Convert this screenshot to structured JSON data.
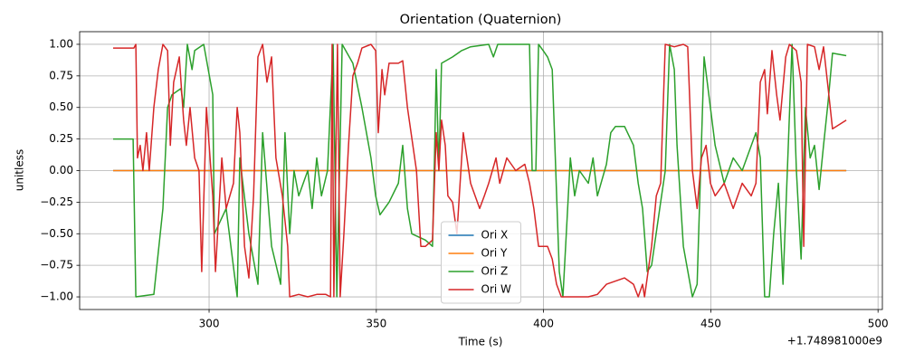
{
  "chart_data": {
    "type": "line",
    "title": "Orientation (Quaternion)",
    "x_label": "Time (s)",
    "y_label": "unitless",
    "x_offset_label": "+1.748981000e9",
    "xlim": [
      261.3,
      501.3
    ],
    "ylim": [
      -1.1,
      1.1
    ],
    "xticks": [
      300,
      350,
      400,
      450,
      500
    ],
    "yticks": [
      {
        "value": -1,
        "label": "−1.00"
      },
      {
        "value": -0.75,
        "label": "−0.75"
      },
      {
        "value": -0.5,
        "label": "−0.50"
      },
      {
        "value": -0.25,
        "label": "−0.25"
      },
      {
        "value": 0,
        "label": "0.00"
      },
      {
        "value": 0.25,
        "label": "0.25"
      },
      {
        "value": 0.5,
        "label": "0.50"
      },
      {
        "value": 0.75,
        "label": "0.75"
      },
      {
        "value": 1,
        "label": "1.00"
      }
    ],
    "grid": true,
    "legend_position": "lower center",
    "series": [
      {
        "name": "Ori X",
        "color": "#1f77b4",
        "x": [
          271.3,
          490.5
        ],
        "values": [
          0,
          0
        ]
      },
      {
        "name": "Ori Y",
        "color": "#ff7f0e",
        "x": [
          271.3,
          490.5
        ],
        "values": [
          0,
          0
        ]
      },
      {
        "name": "Ori Z",
        "color": "#2ca02c",
        "x": [
          271.3,
          277.3,
          278.1,
          283.5,
          286.2,
          287.6,
          288.9,
          291.6,
          292.4,
          293.5,
          294.9,
          295.7,
          298.4,
          301.1,
          301.6,
          305.1,
          308.4,
          309.2,
          311.9,
          314.6,
          316.0,
          318.7,
          321.4,
          322.7,
          324.1,
          325.4,
          326.8,
          329.5,
          330.8,
          332.2,
          333.6,
          335.4,
          337.1,
          338.2,
          339.8,
          343.0,
          345.7,
          348.4,
          349.8,
          351.1,
          353.8,
          356.6,
          357.9,
          359.3,
          360.6,
          364.7,
          366.8,
          367.4,
          367.9,
          368.7,
          369.5,
          372.8,
          375.5,
          378.2,
          383.6,
          385.0,
          386.3,
          395.8,
          396.6,
          397.7,
          398.5,
          399.9,
          401.2,
          402.6,
          404.7,
          405.8,
          406.6,
          408.0,
          409.3,
          410.7,
          413.4,
          414.8,
          416.1,
          418.8,
          420.1,
          421.5,
          424.2,
          426.9,
          428.3,
          429.6,
          431.0,
          432.3,
          435.0,
          436.4,
          437.7,
          439.1,
          439.9,
          441.8,
          444.5,
          445.9,
          448.0,
          451.3,
          454.0,
          456.7,
          459.4,
          463.5,
          464.8,
          466.1,
          467.5,
          468.8,
          470.2,
          471.6,
          472.9,
          474.3,
          475.6,
          477.0,
          478.3,
          479.7,
          481.0,
          482.4,
          483.7,
          485.1,
          486.4,
          490.5
        ],
        "values": [
          0.25,
          0.25,
          -1.0,
          -0.98,
          -0.3,
          0.5,
          0.6,
          0.65,
          0.5,
          1.0,
          0.8,
          0.95,
          1.0,
          0.6,
          -0.5,
          -0.3,
          -1.0,
          0.1,
          -0.5,
          -0.9,
          0.3,
          -0.6,
          -0.9,
          0.3,
          -0.5,
          0.0,
          -0.2,
          0.0,
          -0.3,
          0.1,
          -0.2,
          0.0,
          1.0,
          -1.0,
          1.0,
          0.85,
          0.5,
          0.1,
          -0.2,
          -0.35,
          -0.25,
          -0.1,
          0.2,
          -0.3,
          -0.5,
          -0.55,
          -0.6,
          0.1,
          0.8,
          0.0,
          0.85,
          0.9,
          0.95,
          0.98,
          1.0,
          0.9,
          1.0,
          1.0,
          0.0,
          0.0,
          1.0,
          0.95,
          0.9,
          0.8,
          -0.8,
          -1.0,
          -0.6,
          0.1,
          -0.2,
          0.0,
          -0.1,
          0.1,
          -0.2,
          0.05,
          0.3,
          0.35,
          0.35,
          0.2,
          -0.1,
          -0.3,
          -0.8,
          -0.75,
          -0.25,
          0.0,
          1.0,
          0.8,
          0.2,
          -0.6,
          -1.0,
          -0.9,
          0.9,
          0.2,
          -0.1,
          0.1,
          0.0,
          0.3,
          0.1,
          -1.0,
          -1.0,
          -0.5,
          -0.1,
          -0.9,
          0.0,
          1.0,
          0.0,
          -0.7,
          0.5,
          0.1,
          0.2,
          -0.15,
          0.2,
          0.55,
          0.93,
          0.91
        ]
      },
      {
        "name": "Ori W",
        "color": "#d62728",
        "x": [
          271.3,
          277.5,
          278.1,
          278.6,
          279.4,
          280.2,
          281.3,
          282.1,
          283.5,
          284.8,
          286.2,
          287.6,
          288.4,
          289.4,
          291.1,
          292.4,
          293.2,
          294.3,
          295.7,
          297.0,
          297.8,
          299.2,
          301.1,
          301.9,
          303.8,
          305.1,
          307.3,
          308.4,
          309.2,
          310.6,
          311.9,
          313.3,
          314.6,
          316.0,
          317.3,
          318.7,
          320.0,
          321.9,
          323.5,
          324.1,
          326.8,
          329.5,
          332.2,
          334.9,
          336.3,
          336.8,
          337.3,
          338.4,
          339.2,
          340.3,
          341.7,
          343.0,
          344.4,
          345.7,
          348.4,
          349.8,
          350.6,
          351.7,
          352.5,
          353.8,
          356.6,
          357.9,
          359.3,
          362.0,
          363.3,
          364.7,
          366.8,
          367.9,
          368.7,
          369.5,
          370.6,
          371.4,
          372.8,
          374.1,
          376.0,
          378.2,
          380.9,
          382.3,
          383.6,
          385.8,
          386.9,
          389.0,
          391.7,
          394.4,
          395.8,
          397.1,
          398.5,
          401.2,
          402.6,
          403.9,
          405.3,
          413.4,
          416.1,
          418.8,
          424.2,
          426.9,
          428.3,
          429.6,
          430.2,
          432.3,
          433.7,
          435.0,
          436.4,
          439.1,
          441.8,
          443.1,
          444.5,
          445.9,
          447.2,
          448.6,
          449.9,
          451.3,
          454.0,
          456.7,
          459.4,
          462.1,
          463.5,
          464.8,
          466.1,
          466.9,
          468.3,
          469.7,
          470.7,
          472.4,
          473.5,
          475.6,
          477.0,
          477.8,
          478.9,
          481.0,
          482.4,
          483.7,
          485.1,
          486.4,
          490.5
        ],
        "values": [
          0.97,
          0.97,
          1.0,
          0.1,
          0.2,
          0.0,
          0.3,
          0.0,
          0.5,
          0.8,
          1.0,
          0.95,
          0.2,
          0.7,
          0.9,
          0.4,
          0.2,
          0.5,
          0.1,
          0.0,
          -0.8,
          0.5,
          -0.2,
          -0.8,
          0.1,
          -0.3,
          -0.1,
          0.5,
          0.3,
          -0.6,
          -0.85,
          -0.2,
          0.9,
          1.0,
          0.7,
          0.9,
          0.1,
          -0.2,
          -0.6,
          -1.0,
          -0.98,
          -1.0,
          -0.98,
          -0.98,
          -1.0,
          1.0,
          -1.0,
          1.0,
          -1.0,
          -0.5,
          0.2,
          0.75,
          0.85,
          0.97,
          1.0,
          0.95,
          0.3,
          0.8,
          0.6,
          0.85,
          0.85,
          0.87,
          0.5,
          0.0,
          -0.6,
          -0.6,
          -0.55,
          0.3,
          0.0,
          0.4,
          0.2,
          -0.2,
          -0.25,
          -0.5,
          0.3,
          -0.1,
          -0.3,
          -0.2,
          -0.1,
          0.1,
          -0.1,
          0.1,
          0.0,
          0.05,
          -0.1,
          -0.3,
          -0.6,
          -0.6,
          -0.7,
          -0.9,
          -1.0,
          -1.0,
          -0.98,
          -0.9,
          -0.85,
          -0.9,
          -1.0,
          -0.9,
          -1.0,
          -0.6,
          -0.2,
          -0.1,
          1.0,
          0.98,
          1.0,
          0.98,
          0.0,
          -0.3,
          0.1,
          0.2,
          -0.1,
          -0.2,
          -0.1,
          -0.3,
          -0.1,
          -0.2,
          -0.1,
          0.7,
          0.8,
          0.45,
          0.95,
          0.6,
          0.4,
          0.9,
          1.0,
          0.95,
          0.7,
          -0.6,
          1.0,
          0.98,
          0.8,
          0.98,
          0.65,
          0.33,
          0.4
        ]
      }
    ]
  }
}
